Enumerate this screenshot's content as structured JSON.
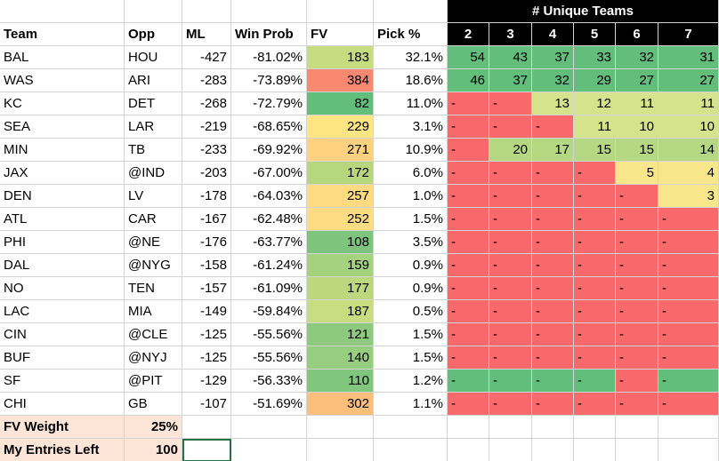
{
  "header": {
    "super": "# Unique Teams",
    "columns": [
      "Team",
      "Opp",
      "ML",
      "Win Prob",
      "FV",
      "Pick %",
      "2",
      "3",
      "4",
      "5",
      "6",
      "7"
    ]
  },
  "rows": [
    {
      "cells": [
        "BAL",
        "HOU",
        "-427",
        "-81.02%",
        "183",
        "32.1%"
      ],
      "fv_color": "#c5dc7f",
      "unique": [
        "54",
        "43",
        "37",
        "33",
        "32",
        "31"
      ],
      "unique_colors": [
        "#63be7b",
        "#63be7b",
        "#63be7b",
        "#63be7b",
        "#63be7b",
        "#63be7b"
      ]
    },
    {
      "cells": [
        "WAS",
        "ARI",
        "-283",
        "-73.89%",
        "384",
        "18.6%"
      ],
      "fv_color": "#f8886f",
      "unique": [
        "46",
        "37",
        "32",
        "29",
        "27",
        "27"
      ],
      "unique_colors": [
        "#63be7b",
        "#63be7b",
        "#63be7b",
        "#63be7b",
        "#63be7b",
        "#63be7b"
      ]
    },
    {
      "cells": [
        "KC",
        "DET",
        "-268",
        "-72.79%",
        "82",
        "11.0%"
      ],
      "fv_color": "#63be7b",
      "unique": [
        "-",
        "-",
        "13",
        "12",
        "11",
        "11"
      ],
      "unique_colors": [
        "#f8696b",
        "#f8696b",
        "#d4e38c",
        "#d4e38c",
        "#d4e38c",
        "#d4e38c"
      ]
    },
    {
      "cells": [
        "SEA",
        "LAR",
        "-219",
        "-68.65%",
        "229",
        "3.1%"
      ],
      "fv_color": "#fee583",
      "unique": [
        "-",
        "-",
        "-",
        "11",
        "10",
        "10"
      ],
      "unique_colors": [
        "#f8696b",
        "#f8696b",
        "#f8696b",
        "#d4e38c",
        "#d4e38c",
        "#d4e38c"
      ]
    },
    {
      "cells": [
        "MIN",
        "TB",
        "-233",
        "-69.92%",
        "271",
        "10.9%"
      ],
      "fv_color": "#fdd17f",
      "unique": [
        "-",
        "20",
        "17",
        "15",
        "15",
        "14"
      ],
      "unique_colors": [
        "#f8696b",
        "#b5d983",
        "#b5d983",
        "#b5d983",
        "#b5d983",
        "#b5d983"
      ]
    },
    {
      "cells": [
        "JAX",
        "@IND",
        "-203",
        "-67.00%",
        "172",
        "6.0%"
      ],
      "fv_color": "#b7d77f",
      "unique": [
        "-",
        "-",
        "-",
        "-",
        "5",
        "4"
      ],
      "unique_colors": [
        "#f8696b",
        "#f8696b",
        "#f8696b",
        "#f8696b",
        "#f7e68a",
        "#f7e68a"
      ]
    },
    {
      "cells": [
        "DEN",
        "LV",
        "-178",
        "-64.03%",
        "257",
        "1.0%"
      ],
      "fv_color": "#fedb81",
      "unique": [
        "-",
        "-",
        "-",
        "-",
        "-",
        "3"
      ],
      "unique_colors": [
        "#f8696b",
        "#f8696b",
        "#f8696b",
        "#f8696b",
        "#f8696b",
        "#f7e68a"
      ]
    },
    {
      "cells": [
        "ATL",
        "CAR",
        "-167",
        "-62.48%",
        "252",
        "1.5%"
      ],
      "fv_color": "#fedd82",
      "unique": [
        "-",
        "-",
        "-",
        "-",
        "-",
        "-"
      ],
      "unique_colors": [
        "#f8696b",
        "#f8696b",
        "#f8696b",
        "#f8696b",
        "#f8696b",
        "#f8696b"
      ]
    },
    {
      "cells": [
        "PHI",
        "@NE",
        "-176",
        "-63.77%",
        "108",
        "3.5%"
      ],
      "fv_color": "#7dc57c",
      "unique": [
        "-",
        "-",
        "-",
        "-",
        "-",
        "-"
      ],
      "unique_colors": [
        "#f8696b",
        "#f8696b",
        "#f8696b",
        "#f8696b",
        "#f8696b",
        "#f8696b"
      ]
    },
    {
      "cells": [
        "DAL",
        "@NYG",
        "-158",
        "-61.24%",
        "159",
        "0.9%"
      ],
      "fv_color": "#a4d27e",
      "unique": [
        "-",
        "-",
        "-",
        "-",
        "-",
        "-"
      ],
      "unique_colors": [
        "#f8696b",
        "#f8696b",
        "#f8696b",
        "#f8696b",
        "#f8696b",
        "#f8696b"
      ]
    },
    {
      "cells": [
        "NO",
        "TEN",
        "-157",
        "-61.09%",
        "177",
        "0.9%"
      ],
      "fv_color": "#bbd87f",
      "unique": [
        "-",
        "-",
        "-",
        "-",
        "-",
        "-"
      ],
      "unique_colors": [
        "#f8696b",
        "#f8696b",
        "#f8696b",
        "#f8696b",
        "#f8696b",
        "#f8696b"
      ]
    },
    {
      "cells": [
        "LAC",
        "MIA",
        "-149",
        "-59.84%",
        "187",
        "0.5%"
      ],
      "fv_color": "#c8dd80",
      "unique": [
        "-",
        "-",
        "-",
        "-",
        "-",
        "-"
      ],
      "unique_colors": [
        "#f8696b",
        "#f8696b",
        "#f8696b",
        "#f8696b",
        "#f8696b",
        "#f8696b"
      ]
    },
    {
      "cells": [
        "CIN",
        "@CLE",
        "-125",
        "-55.56%",
        "121",
        "1.5%"
      ],
      "fv_color": "#8dca7d",
      "unique": [
        "-",
        "-",
        "-",
        "-",
        "-",
        "-"
      ],
      "unique_colors": [
        "#f8696b",
        "#f8696b",
        "#f8696b",
        "#f8696b",
        "#f8696b",
        "#f8696b"
      ]
    },
    {
      "cells": [
        "BUF",
        "@NYJ",
        "-125",
        "-55.56%",
        "140",
        "1.5%"
      ],
      "fv_color": "#97cd7e",
      "unique": [
        "-",
        "-",
        "-",
        "-",
        "-",
        "-"
      ],
      "unique_colors": [
        "#f8696b",
        "#f8696b",
        "#f8696b",
        "#f8696b",
        "#f8696b",
        "#f8696b"
      ]
    },
    {
      "cells": [
        "SF",
        "@PIT",
        "-129",
        "-56.33%",
        "110",
        "1.2%"
      ],
      "fv_color": "#80c67c",
      "unique": [
        "-",
        "-",
        "-",
        "-",
        "-",
        "-"
      ],
      "unique_colors": [
        "#63be7b",
        "#63be7b",
        "#63be7b",
        "#63be7b",
        "#f8696b",
        "#63be7b"
      ]
    },
    {
      "cells": [
        "CHI",
        "GB",
        "-107",
        "-51.69%",
        "302",
        "1.1%"
      ],
      "fv_color": "#fcbf7b",
      "unique": [
        "-",
        "-",
        "-",
        "-",
        "-",
        "-"
      ],
      "unique_colors": [
        "#f8696b",
        "#f8696b",
        "#f8696b",
        "#f8696b",
        "#f8696b",
        "#f8696b"
      ]
    }
  ],
  "footer": [
    {
      "label": "FV Weight",
      "value": "25%"
    },
    {
      "label": "My Entries Left",
      "value": "100"
    }
  ]
}
